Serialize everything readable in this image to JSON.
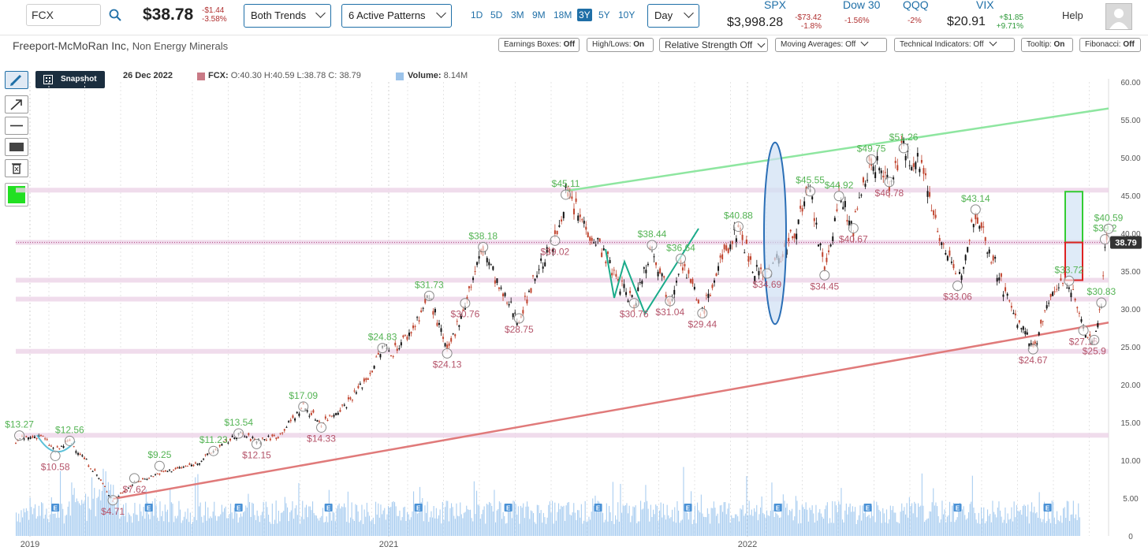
{
  "topbar": {
    "symbol": "FCX",
    "price": "$38.78",
    "change": "-$1.44",
    "change_pct": "-3.58%",
    "trend_select": "Both Trends",
    "pattern_select": "6 Active Patterns",
    "ranges": [
      "1D",
      "5D",
      "3M",
      "9M",
      "18M",
      "3Y",
      "5Y",
      "10Y"
    ],
    "active_range": "3Y",
    "interval": "Day",
    "indices": [
      {
        "name": "SPX",
        "value": "$3,998.28",
        "change": "-$73.42",
        "pct": "-1.8%",
        "dir": "neg"
      },
      {
        "name": "Dow 30",
        "value": "",
        "change": "-1.56%",
        "pct": "",
        "dir": "neg"
      },
      {
        "name": "QQQ",
        "value": "",
        "change": "-2%",
        "pct": "",
        "dir": "neg"
      },
      {
        "name": "VIX",
        "value": "$20.91",
        "change": "+$1.85",
        "pct": "+9.71%",
        "dir": "pos"
      }
    ],
    "help": "Help"
  },
  "company": {
    "name": "Freeport-McMoRan Inc,",
    "sector": "Non Energy Minerals"
  },
  "options": [
    {
      "label": "Earnings Boxes:",
      "state": "Off",
      "dropdown": false
    },
    {
      "label": "High/Lows:",
      "state": "On",
      "dropdown": false
    },
    {
      "label": "Relative Strength Off",
      "state": "",
      "dropdown": true
    },
    {
      "label": "Moving Averages: Off",
      "state": "",
      "dropdown": true
    },
    {
      "label": "Technical Indicators: Off",
      "state": "",
      "dropdown": true
    },
    {
      "label": "Tooltip:",
      "state": "On",
      "dropdown": false
    },
    {
      "label": "Fibonacci:",
      "state": "Off",
      "dropdown": false
    }
  ],
  "toolbar": {
    "snapshot": "Snapshot",
    "color": "#22e022"
  },
  "quote_info": {
    "date": "26 Dec 2022",
    "symbol": "FCX:",
    "ohlc": "O:40.30 H:40.59 L:38.78 C: 38.79",
    "volume_label": "Volume:",
    "volume": "8.14M"
  },
  "chart_data": {
    "type": "candlestick",
    "ylim": [
      0,
      60
    ],
    "y_ticks": [
      "60.00",
      "55.00",
      "50.00",
      "45.00",
      "40.00",
      "35.00",
      "30.00",
      "25.00",
      "20.00",
      "15.00",
      "10.00",
      "5.00",
      "0"
    ],
    "x_ticks": [
      {
        "label": "2019",
        "t": 2019.0
      },
      {
        "label": "2021",
        "t": 2021.0
      },
      {
        "label": "2022",
        "t": 2022.0
      }
    ],
    "x_range": [
      2019.95,
      2022.99
    ],
    "last_price": "38.79",
    "last_value": 38.79,
    "price_path": [
      [
        2019.95,
        12.6
      ],
      [
        2020.02,
        13.3
      ],
      [
        2020.06,
        11.2
      ],
      [
        2020.1,
        12.56
      ],
      [
        2020.17,
        8.5
      ],
      [
        2020.22,
        4.71
      ],
      [
        2020.28,
        7.0
      ],
      [
        2020.35,
        8.3
      ],
      [
        2020.45,
        9.5
      ],
      [
        2020.5,
        11.2
      ],
      [
        2020.57,
        13.5
      ],
      [
        2020.62,
        12.6
      ],
      [
        2020.68,
        13.2
      ],
      [
        2020.75,
        17.09
      ],
      [
        2020.8,
        14.9
      ],
      [
        2020.87,
        17.5
      ],
      [
        2020.93,
        21.0
      ],
      [
        2020.97,
        24.83
      ],
      [
        2021.0,
        24.4
      ],
      [
        2021.05,
        27.0
      ],
      [
        2021.1,
        31.73
      ],
      [
        2021.15,
        24.13
      ],
      [
        2021.2,
        30.76
      ],
      [
        2021.25,
        38.18
      ],
      [
        2021.3,
        32.0
      ],
      [
        2021.35,
        28.75
      ],
      [
        2021.4,
        35.0
      ],
      [
        2021.45,
        39.02
      ],
      [
        2021.48,
        45.11
      ],
      [
        2021.52,
        42.0
      ],
      [
        2021.58,
        38.0
      ],
      [
        2021.62,
        34.0
      ],
      [
        2021.67,
        30.76
      ],
      [
        2021.72,
        38.44
      ],
      [
        2021.77,
        31.04
      ],
      [
        2021.8,
        36.64
      ],
      [
        2021.86,
        29.44
      ],
      [
        2021.91,
        36.0
      ],
      [
        2021.96,
        40.88
      ],
      [
        2022.0,
        35.5
      ],
      [
        2022.04,
        34.69
      ],
      [
        2022.1,
        38.5
      ],
      [
        2022.16,
        45.55
      ],
      [
        2022.2,
        34.45
      ],
      [
        2022.24,
        44.92
      ],
      [
        2022.28,
        40.67
      ],
      [
        2022.33,
        49.75
      ],
      [
        2022.38,
        46.78
      ],
      [
        2022.42,
        51.26
      ],
      [
        2022.47,
        49.0
      ],
      [
        2022.52,
        40.0
      ],
      [
        2022.57,
        33.06
      ],
      [
        2022.62,
        43.14
      ],
      [
        2022.68,
        35.0
      ],
      [
        2022.72,
        30.0
      ],
      [
        2022.78,
        24.67
      ],
      [
        2022.84,
        33.0
      ],
      [
        2022.88,
        33.72
      ],
      [
        2022.92,
        27.16
      ],
      [
        2022.95,
        25.9
      ],
      [
        2022.97,
        30.83
      ],
      [
        2022.98,
        39.2
      ],
      [
        2022.99,
        38.79
      ]
    ],
    "price_labels": [
      {
        "text": "$13.27",
        "t": 2019.96,
        "v": 13.27,
        "kind": "high"
      },
      {
        "text": "$12.56",
        "t": 2020.1,
        "v": 12.56,
        "kind": "high"
      },
      {
        "text": "$10.58",
        "t": 2020.06,
        "v": 10.58,
        "kind": "low"
      },
      {
        "text": "$9.25",
        "t": 2020.35,
        "v": 9.25,
        "kind": "high"
      },
      {
        "text": "$7.62",
        "t": 2020.28,
        "v": 7.62,
        "kind": "low"
      },
      {
        "text": "$4.71",
        "t": 2020.22,
        "v": 4.71,
        "kind": "low"
      },
      {
        "text": "$11.23",
        "t": 2020.5,
        "v": 11.23,
        "kind": "high"
      },
      {
        "text": "$13.54",
        "t": 2020.57,
        "v": 13.54,
        "kind": "high"
      },
      {
        "text": "$12.15",
        "t": 2020.62,
        "v": 12.15,
        "kind": "low"
      },
      {
        "text": "$17.09",
        "t": 2020.75,
        "v": 17.09,
        "kind": "high"
      },
      {
        "text": "$14.33",
        "t": 2020.8,
        "v": 14.33,
        "kind": "low"
      },
      {
        "text": "$24.83",
        "t": 2020.97,
        "v": 24.83,
        "kind": "high"
      },
      {
        "text": "$24.13",
        "t": 2021.15,
        "v": 24.13,
        "kind": "low"
      },
      {
        "text": "$31.73",
        "t": 2021.1,
        "v": 31.73,
        "kind": "high"
      },
      {
        "text": "$30.76",
        "t": 2021.2,
        "v": 30.76,
        "kind": "low"
      },
      {
        "text": "$38.18",
        "t": 2021.25,
        "v": 38.18,
        "kind": "high"
      },
      {
        "text": "$28.75",
        "t": 2021.35,
        "v": 28.75,
        "kind": "low"
      },
      {
        "text": "$45.11",
        "t": 2021.48,
        "v": 45.11,
        "kind": "high"
      },
      {
        "text": "$39.02",
        "t": 2021.45,
        "v": 39.02,
        "kind": "low"
      },
      {
        "text": "$30.76",
        "t": 2021.67,
        "v": 30.76,
        "kind": "low"
      },
      {
        "text": "$38.44",
        "t": 2021.72,
        "v": 38.44,
        "kind": "high"
      },
      {
        "text": "$36.64",
        "t": 2021.8,
        "v": 36.64,
        "kind": "high"
      },
      {
        "text": "$31.04",
        "t": 2021.77,
        "v": 31.04,
        "kind": "low"
      },
      {
        "text": "$29.44",
        "t": 2021.86,
        "v": 29.44,
        "kind": "low"
      },
      {
        "text": "$40.88",
        "t": 2021.96,
        "v": 40.88,
        "kind": "high"
      },
      {
        "text": "$34.69",
        "t": 2022.04,
        "v": 34.69,
        "kind": "low"
      },
      {
        "text": "$45.55",
        "t": 2022.16,
        "v": 45.55,
        "kind": "high"
      },
      {
        "text": "$44.92",
        "t": 2022.24,
        "v": 44.92,
        "kind": "high"
      },
      {
        "text": "$34.45",
        "t": 2022.2,
        "v": 34.45,
        "kind": "low"
      },
      {
        "text": "$40.67",
        "t": 2022.28,
        "v": 40.67,
        "kind": "low"
      },
      {
        "text": "$49.75",
        "t": 2022.33,
        "v": 49.75,
        "kind": "high"
      },
      {
        "text": "$51.26",
        "t": 2022.42,
        "v": 51.26,
        "kind": "high"
      },
      {
        "text": "$46.78",
        "t": 2022.38,
        "v": 46.78,
        "kind": "low"
      },
      {
        "text": "$43.14",
        "t": 2022.62,
        "v": 43.14,
        "kind": "high"
      },
      {
        "text": "$33.06",
        "t": 2022.57,
        "v": 33.06,
        "kind": "low"
      },
      {
        "text": "$24.67",
        "t": 2022.78,
        "v": 24.67,
        "kind": "low"
      },
      {
        "text": "$33.72",
        "t": 2022.88,
        "v": 33.72,
        "kind": "high"
      },
      {
        "text": "$27.16",
        "t": 2022.92,
        "v": 27.16,
        "kind": "low"
      },
      {
        "text": "$25.9",
        "t": 2022.95,
        "v": 25.9,
        "kind": "low"
      },
      {
        "text": "$30.83",
        "t": 2022.97,
        "v": 30.83,
        "kind": "high"
      },
      {
        "text": "$39.2",
        "t": 2022.98,
        "v": 39.2,
        "kind": "high"
      },
      {
        "text": "$40.59",
        "t": 2022.99,
        "v": 40.59,
        "kind": "high"
      }
    ],
    "support_levels": [
      13.3,
      24.4,
      31.3,
      33.8,
      38.8,
      45.7
    ],
    "trend_lines": [
      {
        "color": "#8ee6a0",
        "from": [
          2021.48,
          45.6
        ],
        "to": [
          2022.99,
          56.5
        ]
      },
      {
        "color": "#e07a7a",
        "from": [
          2020.22,
          4.9
        ],
        "to": [
          2022.99,
          28.2
        ]
      }
    ],
    "target_boxes": [
      {
        "color": "#33cc33",
        "v_low": 38.79,
        "v_high": 45.5
      },
      {
        "color": "#dd2222",
        "v_low": 33.8,
        "v_high": 38.79
      }
    ],
    "earnings_markers": [
      2020.06,
      2020.32,
      2020.57,
      2020.82,
      2021.07,
      2021.32,
      2021.57,
      2021.82,
      2022.07,
      2022.32,
      2022.57,
      2022.82
    ]
  }
}
